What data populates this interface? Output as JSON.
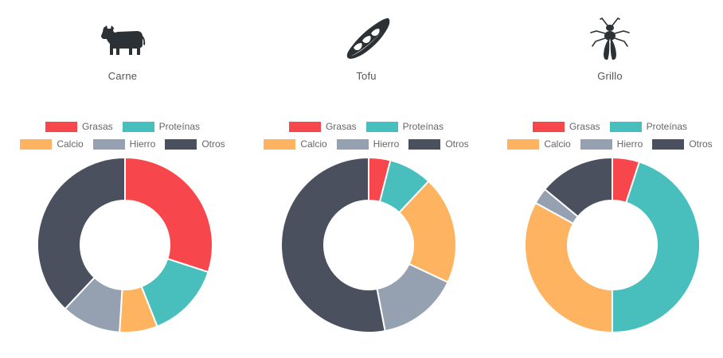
{
  "colors": {
    "grasas": "#f7474d",
    "proteinas": "#48bfbc",
    "calcio": "#fdb35f",
    "hierro": "#95a0b1",
    "otros": "#4b505e"
  },
  "legend_labels": [
    "Grasas",
    "Proteínas",
    "Calcio",
    "Hierro",
    "Otros"
  ],
  "panels": [
    {
      "title": "Carne",
      "icon": "cow-icon"
    },
    {
      "title": "Tofu",
      "icon": "tofu-pod-icon"
    },
    {
      "title": "Grillo",
      "icon": "cricket-icon"
    }
  ],
  "chart_data": [
    {
      "type": "pie",
      "title": "Carne",
      "categories": [
        "Grasas",
        "Proteínas",
        "Calcio",
        "Hierro",
        "Otros"
      ],
      "values": [
        30,
        14,
        7,
        11,
        38
      ]
    },
    {
      "type": "pie",
      "title": "Tofu",
      "categories": [
        "Grasas",
        "Proteínas",
        "Calcio",
        "Hierro",
        "Otros"
      ],
      "values": [
        4,
        8,
        20,
        15,
        53
      ]
    },
    {
      "type": "pie",
      "title": "Grillo",
      "categories": [
        "Grasas",
        "Proteínas",
        "Calcio",
        "Hierro",
        "Otros"
      ],
      "values": [
        5,
        45,
        33,
        3,
        14
      ]
    }
  ]
}
